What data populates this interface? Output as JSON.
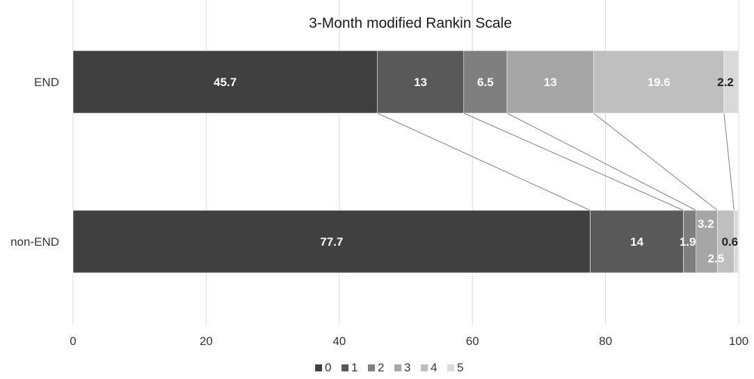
{
  "chart_data": {
    "type": "bar",
    "orientation": "horizontal",
    "stacked": true,
    "title": "3-Month modified Rankin Scale",
    "xlabel": "",
    "ylabel": "",
    "xlim": [
      0,
      100
    ],
    "x_ticks": [
      "0",
      "20",
      "40",
      "60",
      "80",
      "100"
    ],
    "grid": "vertical",
    "legend_position": "bottom",
    "series_connectors": true,
    "categories": [
      "END",
      "non-END"
    ],
    "series": [
      {
        "name": "0",
        "color": "#404040",
        "label_color": "#ffffff",
        "values": [
          45.7,
          77.7
        ],
        "labels": [
          "45.7",
          "77.7"
        ]
      },
      {
        "name": "1",
        "color": "#595959",
        "label_color": "#ffffff",
        "values": [
          13,
          14
        ],
        "labels": [
          "13",
          "14"
        ]
      },
      {
        "name": "2",
        "color": "#7f7f7f",
        "label_color": "#ffffff",
        "values": [
          6.5,
          1.9
        ],
        "labels": [
          "6.5",
          "1.9"
        ]
      },
      {
        "name": "3",
        "color": "#a6a6a6",
        "label_color": "#ffffff",
        "values": [
          13,
          3.2
        ],
        "labels": [
          "13",
          "3.2"
        ]
      },
      {
        "name": "4",
        "color": "#bfbfbf",
        "label_color": "#ffffff",
        "values": [
          19.6,
          2.5
        ],
        "labels": [
          "19.6",
          "2.5"
        ]
      },
      {
        "name": "5",
        "color": "#d9d9d9",
        "label_color": "#222222",
        "values": [
          2.2,
          0.6
        ],
        "labels": [
          "2.2",
          "0.6"
        ]
      }
    ]
  }
}
